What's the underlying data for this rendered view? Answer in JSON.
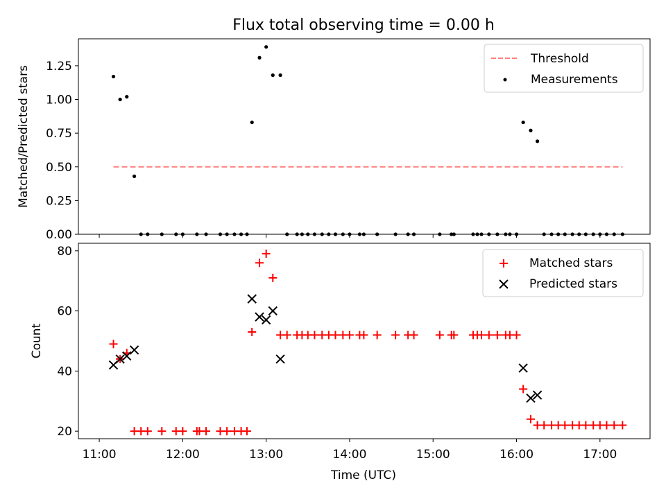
{
  "chart_data": [
    {
      "type": "scatter",
      "title": "Flux total observing time = 0.00 h",
      "xlabel": "",
      "ylabel": "Matched/Predicted stars",
      "xlim": [
        10.75,
        17.6
      ],
      "ylim": [
        0,
        1.45
      ],
      "yticks": [
        0,
        0.25,
        0.5,
        0.75,
        1.0,
        1.25
      ],
      "ytick_labels": [
        "0.00",
        "0.25",
        "0.50",
        "0.75",
        "1.00",
        "1.25"
      ],
      "legend": [
        {
          "label": "Threshold",
          "color": "#ff7f7f",
          "style": "dashed-line"
        },
        {
          "label": "Measurements",
          "color": "#000000",
          "style": "dot"
        }
      ],
      "threshold": {
        "y": 0.5,
        "x_start": 11.17,
        "x_end": 17.27
      },
      "measurements": {
        "x": [
          11.17,
          11.25,
          11.33,
          11.42,
          11.5,
          11.58,
          11.75,
          11.92,
          12.0,
          12.17,
          12.28,
          12.45,
          12.53,
          12.62,
          12.7,
          12.77,
          12.83,
          12.92,
          13.0,
          13.08,
          13.17,
          13.25,
          13.37,
          13.43,
          13.5,
          13.58,
          13.67,
          13.75,
          13.83,
          13.92,
          14.0,
          14.12,
          14.17,
          14.33,
          14.55,
          14.7,
          14.77,
          15.08,
          15.22,
          15.25,
          15.48,
          15.53,
          15.58,
          15.67,
          15.77,
          15.87,
          15.92,
          16.0,
          16.08,
          16.17,
          16.25,
          16.33,
          16.42,
          16.5,
          16.58,
          16.67,
          16.75,
          16.83,
          16.92,
          17.0,
          17.08,
          17.17,
          17.27
        ],
        "y": [
          1.17,
          1.0,
          1.02,
          0.43,
          0.0,
          0.0,
          0.0,
          0.0,
          0.0,
          0.0,
          0.0,
          0.0,
          0.0,
          0.0,
          0.0,
          0.0,
          0.83,
          1.31,
          1.39,
          1.18,
          1.18,
          0.0,
          0.0,
          0.0,
          0.0,
          0.0,
          0.0,
          0.0,
          0.0,
          0.0,
          0.0,
          0.0,
          0.0,
          0.0,
          0.0,
          0.0,
          0.0,
          0.0,
          0.0,
          0.0,
          0.0,
          0.0,
          0.0,
          0.0,
          0.0,
          0.0,
          0.0,
          0.0,
          0.83,
          0.77,
          0.69,
          0.0,
          0.0,
          0.0,
          0.0,
          0.0,
          0.0,
          0.0,
          0.0,
          0.0,
          0.0,
          0.0,
          0.0
        ]
      }
    },
    {
      "type": "scatter",
      "title": "",
      "xlabel": "Time (UTC)",
      "ylabel": "Count",
      "xlim": [
        10.75,
        17.6
      ],
      "ylim": [
        17.5,
        82.5
      ],
      "xticks": [
        11,
        12,
        13,
        14,
        15,
        16,
        17
      ],
      "xtick_labels": [
        "11:00",
        "12:00",
        "13:00",
        "14:00",
        "15:00",
        "16:00",
        "17:00"
      ],
      "yticks": [
        20,
        40,
        60,
        80
      ],
      "ytick_labels": [
        "20",
        "40",
        "60",
        "80"
      ],
      "legend": [
        {
          "label": "Matched stars",
          "color": "#ff0000",
          "style": "plus"
        },
        {
          "label": "Predicted stars",
          "color": "#000000",
          "style": "x"
        }
      ],
      "series": [
        {
          "name": "Matched stars",
          "marker": "+",
          "color": "#ff0000",
          "x": [
            11.17,
            11.25,
            11.33,
            11.42,
            11.5,
            11.58,
            11.75,
            11.92,
            12.0,
            12.17,
            12.2,
            12.28,
            12.45,
            12.53,
            12.62,
            12.7,
            12.77,
            12.83,
            12.92,
            13.0,
            13.08,
            13.17,
            13.25,
            13.37,
            13.43,
            13.5,
            13.58,
            13.67,
            13.75,
            13.83,
            13.92,
            14.0,
            14.12,
            14.17,
            14.33,
            14.55,
            14.7,
            14.77,
            15.08,
            15.22,
            15.25,
            15.48,
            15.53,
            15.58,
            15.67,
            15.77,
            15.87,
            15.92,
            16.0,
            16.08,
            16.17,
            16.25,
            16.33,
            16.42,
            16.5,
            16.58,
            16.67,
            16.75,
            16.83,
            16.92,
            17.0,
            17.08,
            17.17,
            17.27
          ],
          "y": [
            49,
            44,
            46,
            20,
            20,
            20,
            20,
            20,
            20,
            20,
            20,
            20,
            20,
            20,
            20,
            20,
            20,
            53,
            76,
            79,
            71,
            52,
            52,
            52,
            52,
            52,
            52,
            52,
            52,
            52,
            52,
            52,
            52,
            52,
            52,
            52,
            52,
            52,
            52,
            52,
            52,
            52,
            52,
            52,
            52,
            52,
            52,
            52,
            52,
            34,
            24,
            22,
            22,
            22,
            22,
            22,
            22,
            22,
            22,
            22,
            22,
            22,
            22,
            22
          ]
        },
        {
          "name": "Predicted stars",
          "marker": "x",
          "color": "#000000",
          "x": [
            11.17,
            11.25,
            11.33,
            11.42,
            12.83,
            12.92,
            13.0,
            13.08,
            13.17,
            16.08,
            16.17,
            16.25
          ],
          "y": [
            42,
            44,
            45,
            47,
            64,
            58,
            57,
            60,
            44,
            41,
            31,
            32
          ]
        }
      ]
    }
  ]
}
